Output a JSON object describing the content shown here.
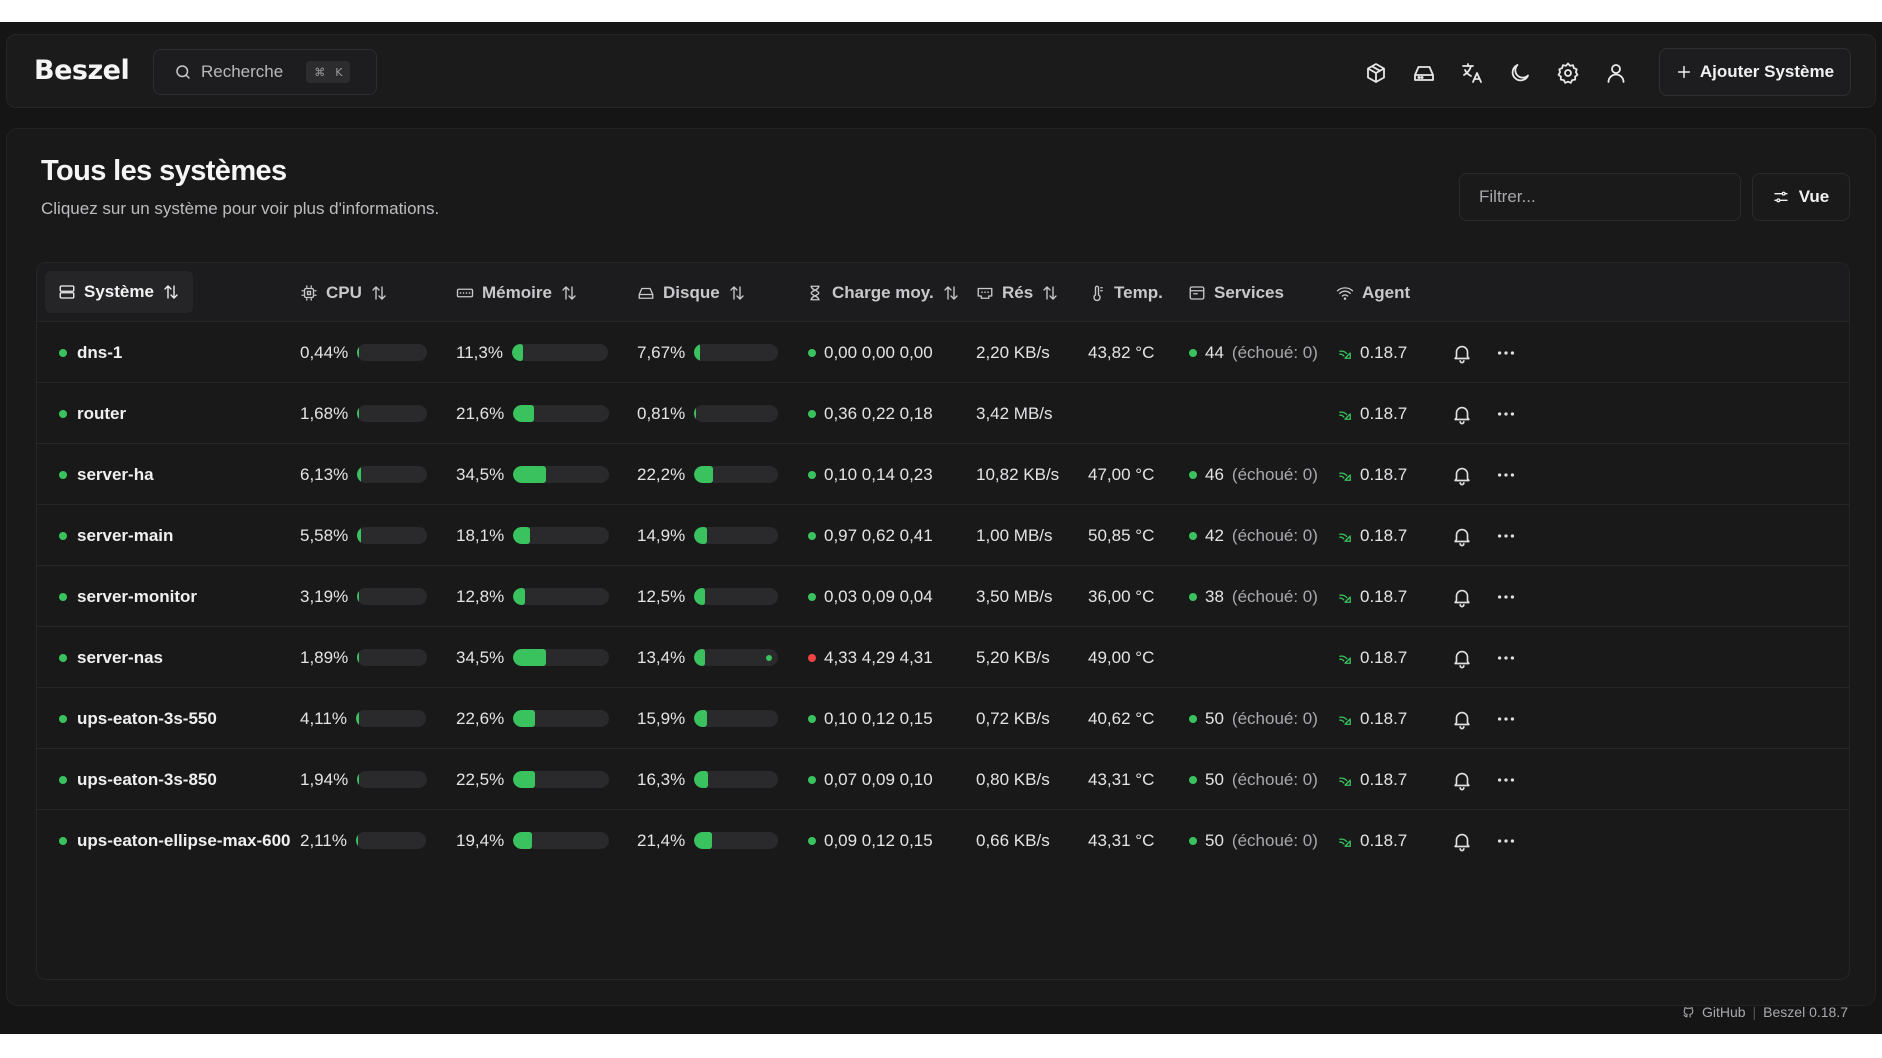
{
  "app": {
    "logo": "Beszel",
    "accent": "#3ac25f",
    "alert": "#ef4444"
  },
  "header": {
    "search_label": "Recherche",
    "kbd_cmd": "⌘",
    "kbd_key": "K",
    "icons": [
      "package-icon",
      "hard-drive-icon",
      "translate-icon",
      "moon-icon",
      "gear-icon",
      "user-icon"
    ],
    "add_system_label": "Ajouter Système"
  },
  "page": {
    "title": "Tous les systèmes",
    "subtitle": "Cliquez sur un système pour voir plus d'informations.",
    "filter_placeholder": "Filtrer...",
    "view_label": "Vue"
  },
  "table": {
    "columns": {
      "system": "Système",
      "cpu": "CPU",
      "memory": "Mémoire",
      "disk": "Disque",
      "load": "Charge moy.",
      "net": "Rés",
      "temp": "Temp.",
      "services": "Services",
      "agent": "Agent"
    },
    "rows": [
      {
        "name": "dns-1",
        "cpu": "0,44%",
        "cpu_pct": 0.44,
        "mem": "11,3%",
        "mem_pct": 11.3,
        "disk": "7,67%",
        "disk_pct": 7.67,
        "load": "0,00 0,00 0,00",
        "load_status": "ok",
        "net": "2,20 KB/s",
        "temp": "43,82 °C",
        "svc_count": "44",
        "svc_failed": "(échoué: 0)",
        "agent": "0.18.7"
      },
      {
        "name": "router",
        "cpu": "1,68%",
        "cpu_pct": 1.68,
        "mem": "21,6%",
        "mem_pct": 21.6,
        "disk": "0,81%",
        "disk_pct": 0.81,
        "load": "0,36 0,22 0,18",
        "load_status": "ok",
        "net": "3,42 MB/s",
        "temp": "",
        "svc_count": "",
        "svc_failed": "",
        "agent": "0.18.7"
      },
      {
        "name": "server-ha",
        "cpu": "6,13%",
        "cpu_pct": 6.13,
        "mem": "34,5%",
        "mem_pct": 34.5,
        "disk": "22,2%",
        "disk_pct": 22.2,
        "load": "0,10 0,14 0,23",
        "load_status": "ok",
        "net": "10,82 KB/s",
        "temp": "47,00 °C",
        "svc_count": "46",
        "svc_failed": "(échoué: 0)",
        "agent": "0.18.7"
      },
      {
        "name": "server-main",
        "cpu": "5,58%",
        "cpu_pct": 5.58,
        "mem": "18,1%",
        "mem_pct": 18.1,
        "disk": "14,9%",
        "disk_pct": 14.9,
        "load": "0,97 0,62 0,41",
        "load_status": "ok",
        "net": "1,00 MB/s",
        "temp": "50,85 °C",
        "svc_count": "42",
        "svc_failed": "(échoué: 0)",
        "agent": "0.18.7"
      },
      {
        "name": "server-monitor",
        "cpu": "3,19%",
        "cpu_pct": 3.19,
        "mem": "12,8%",
        "mem_pct": 12.8,
        "disk": "12,5%",
        "disk_pct": 12.5,
        "load": "0,03 0,09 0,04",
        "load_status": "ok",
        "net": "3,50 MB/s",
        "temp": "36,00 °C",
        "svc_count": "38",
        "svc_failed": "(échoué: 0)",
        "agent": "0.18.7"
      },
      {
        "name": "server-nas",
        "cpu": "1,89%",
        "cpu_pct": 1.89,
        "mem": "34,5%",
        "mem_pct": 34.5,
        "disk": "13,4%",
        "disk_pct": 13.4,
        "load": "4,33 4,29 4,31",
        "load_status": "high",
        "net": "5,20 KB/s",
        "temp": "49,00 °C",
        "svc_count": "",
        "svc_failed": "",
        "agent": "0.18.7"
      },
      {
        "name": "ups-eaton-3s-550",
        "cpu": "4,11%",
        "cpu_pct": 4.11,
        "mem": "22,6%",
        "mem_pct": 22.6,
        "disk": "15,9%",
        "disk_pct": 15.9,
        "load": "0,10 0,12 0,15",
        "load_status": "ok",
        "net": "0,72 KB/s",
        "temp": "40,62 °C",
        "svc_count": "50",
        "svc_failed": "(échoué: 0)",
        "agent": "0.18.7"
      },
      {
        "name": "ups-eaton-3s-850",
        "cpu": "1,94%",
        "cpu_pct": 1.94,
        "mem": "22,5%",
        "mem_pct": 22.5,
        "disk": "16,3%",
        "disk_pct": 16.3,
        "load": "0,07 0,09 0,10",
        "load_status": "ok",
        "net": "0,80 KB/s",
        "temp": "43,31 °C",
        "svc_count": "50",
        "svc_failed": "(échoué: 0)",
        "agent": "0.18.7"
      },
      {
        "name": "ups-eaton-ellipse-max-600",
        "cpu": "2,11%",
        "cpu_pct": 2.11,
        "mem": "19,4%",
        "mem_pct": 19.4,
        "disk": "21,4%",
        "disk_pct": 21.4,
        "load": "0,09 0,12 0,15",
        "load_status": "ok",
        "net": "0,66 KB/s",
        "temp": "43,31 °C",
        "svc_count": "50",
        "svc_failed": "(échoué: 0)",
        "agent": "0.18.7"
      }
    ]
  },
  "footer": {
    "github_label": "GitHub",
    "version_label": "Beszel 0.18.7"
  }
}
